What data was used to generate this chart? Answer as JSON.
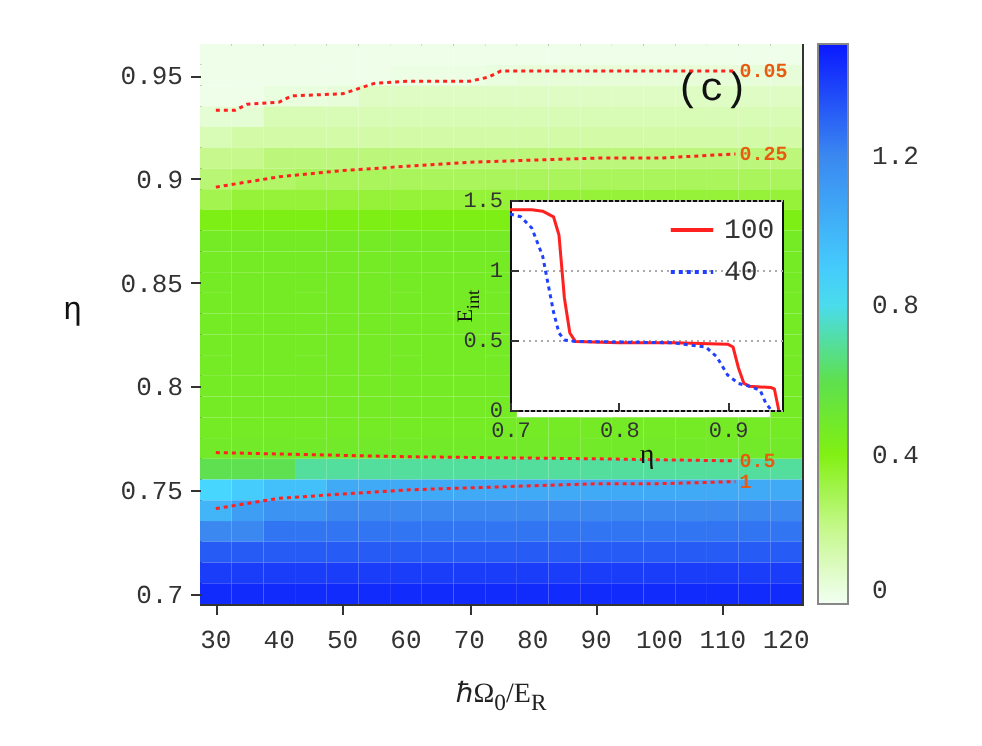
{
  "chart_data": [
    {
      "type": "heatmap",
      "annotations": [
        "(c)"
      ],
      "categories": [
        null,
        null,
        null,
        null,
        null,
        null,
        null,
        null,
        null,
        null,
        null,
        null,
        null,
        null,
        null,
        null,
        null,
        null,
        null
      ],
      "y_categories": [
        null,
        null,
        null,
        null,
        null,
        null,
        null,
        null,
        null,
        null,
        null,
        null,
        null,
        null,
        null,
        null,
        null,
        null,
        null,
        null,
        null,
        null,
        null,
        null,
        null,
        null,
        null
      ],
      "cells": [
        [
          0.02,
          0.02,
          0.02,
          0.02,
          0.02,
          0.02,
          0.02,
          0.02,
          0.02,
          0.02,
          0.02,
          0.02,
          0.02,
          0.02,
          0.02,
          0.02,
          0.02,
          0.02,
          0.02
        ],
        [
          0.02,
          0.02,
          0.02,
          0.02,
          0.02,
          0.02,
          0.03,
          0.03,
          0.03,
          0.04,
          0.05,
          0.05,
          0.05,
          0.05,
          0.05,
          0.05,
          0.05,
          0.05,
          0.05
        ],
        [
          0.02,
          0.02,
          0.04,
          0.04,
          0.05,
          0.09,
          0.09,
          0.09,
          0.09,
          0.09,
          0.09,
          0.09,
          0.09,
          0.09,
          0.09,
          0.09,
          0.09,
          0.09,
          0.09
        ],
        [
          0.06,
          0.06,
          0.12,
          0.12,
          0.12,
          0.12,
          0.12,
          0.12,
          0.12,
          0.12,
          0.12,
          0.12,
          0.12,
          0.12,
          0.12,
          0.12,
          0.12,
          0.12,
          0.12
        ],
        [
          0.12,
          0.15,
          0.15,
          0.15,
          0.15,
          0.15,
          0.15,
          0.15,
          0.15,
          0.15,
          0.15,
          0.15,
          0.15,
          0.15,
          0.15,
          0.15,
          0.15,
          0.15,
          0.15
        ],
        [
          0.2,
          0.2,
          0.23,
          0.23,
          0.23,
          0.23,
          0.23,
          0.23,
          0.23,
          0.23,
          0.23,
          0.23,
          0.23,
          0.23,
          0.23,
          0.23,
          0.23,
          0.23,
          0.23
        ],
        [
          0.24,
          0.26,
          0.26,
          0.28,
          0.28,
          0.28,
          0.28,
          0.28,
          0.28,
          0.28,
          0.28,
          0.28,
          0.28,
          0.28,
          0.28,
          0.28,
          0.28,
          0.28,
          0.28
        ],
        [
          0.3,
          0.34,
          0.34,
          0.34,
          0.34,
          0.34,
          0.34,
          0.34,
          0.34,
          0.34,
          0.34,
          0.34,
          0.34,
          0.34,
          0.34,
          0.34,
          0.34,
          0.34,
          0.34
        ],
        [
          0.42,
          0.42,
          0.42,
          0.42,
          0.42,
          0.42,
          0.42,
          0.42,
          0.42,
          0.42,
          null,
          null,
          null,
          null,
          null,
          null,
          null,
          null,
          0.42
        ],
        [
          0.47,
          0.47,
          0.47,
          0.47,
          0.47,
          0.47,
          0.47,
          0.47,
          0.47,
          0.47,
          null,
          null,
          null,
          null,
          null,
          null,
          null,
          null,
          0.47
        ],
        [
          0.47,
          0.47,
          0.47,
          0.47,
          0.47,
          0.47,
          0.47,
          0.47,
          0.47,
          0.47,
          null,
          null,
          null,
          null,
          null,
          null,
          null,
          null,
          0.47
        ],
        [
          0.47,
          0.47,
          0.47,
          0.47,
          0.47,
          0.47,
          0.47,
          0.47,
          0.47,
          0.47,
          null,
          null,
          null,
          null,
          null,
          null,
          null,
          null,
          0.47
        ],
        [
          0.47,
          0.47,
          0.47,
          0.47,
          0.47,
          0.47,
          0.47,
          0.47,
          0.47,
          0.47,
          null,
          null,
          null,
          null,
          null,
          null,
          null,
          null,
          0.47
        ],
        [
          0.47,
          0.47,
          0.47,
          0.47,
          0.47,
          0.47,
          0.47,
          0.47,
          0.47,
          0.47,
          null,
          null,
          null,
          null,
          null,
          null,
          null,
          null,
          0.47
        ],
        [
          0.47,
          0.47,
          0.47,
          0.47,
          0.47,
          0.47,
          0.47,
          0.47,
          0.47,
          0.47,
          null,
          null,
          null,
          null,
          null,
          null,
          null,
          null,
          0.47
        ],
        [
          0.47,
          0.47,
          0.47,
          0.47,
          0.47,
          0.47,
          0.47,
          0.47,
          0.47,
          0.47,
          null,
          null,
          null,
          null,
          null,
          null,
          null,
          null,
          0.47
        ],
        [
          0.47,
          0.47,
          0.47,
          0.47,
          0.47,
          0.47,
          0.47,
          0.47,
          0.47,
          0.47,
          null,
          null,
          null,
          null,
          null,
          null,
          null,
          null,
          0.47
        ],
        [
          0.47,
          0.47,
          0.47,
          0.47,
          0.47,
          0.47,
          0.47,
          0.47,
          0.47,
          0.47,
          null,
          null,
          null,
          null,
          null,
          null,
          null,
          null,
          0.47
        ],
        [
          0.47,
          0.47,
          0.47,
          0.47,
          0.47,
          0.47,
          0.47,
          0.47,
          0.47,
          0.47,
          0.47,
          0.47,
          0.47,
          0.47,
          0.47,
          0.47,
          0.47,
          0.47,
          0.47
        ],
        [
          0.48,
          0.48,
          0.48,
          0.48,
          0.48,
          0.48,
          0.48,
          0.48,
          0.48,
          0.48,
          0.48,
          0.48,
          0.48,
          0.48,
          0.48,
          0.48,
          0.48,
          0.48,
          0.48
        ],
        [
          0.6,
          0.6,
          0.6,
          0.7,
          0.7,
          0.7,
          0.7,
          0.7,
          0.7,
          0.7,
          0.7,
          0.7,
          0.7,
          0.7,
          0.7,
          0.7,
          0.7,
          0.7,
          0.7
        ],
        [
          0.85,
          0.9,
          0.95,
          0.95,
          1.05,
          1.05,
          1.05,
          1.05,
          1.05,
          1.05,
          1.05,
          1.05,
          1.05,
          1.05,
          1.05,
          1.05,
          1.05,
          1.05,
          1.05
        ],
        [
          1,
          1.1,
          1.15,
          1.15,
          1.2,
          1.2,
          1.2,
          1.2,
          1.2,
          1.2,
          1.2,
          1.2,
          1.2,
          1.2,
          1.2,
          1.2,
          1.2,
          1.2,
          1.2
        ],
        [
          1.2,
          1.2,
          1.25,
          1.25,
          1.25,
          1.25,
          1.25,
          1.25,
          1.25,
          1.25,
          1.25,
          1.25,
          1.25,
          1.25,
          1.25,
          1.25,
          1.25,
          1.25,
          1.25
        ],
        [
          1.32,
          1.32,
          1.32,
          1.32,
          1.32,
          1.32,
          1.32,
          1.32,
          1.32,
          1.32,
          1.32,
          1.32,
          1.32,
          1.32,
          1.32,
          1.32,
          1.32,
          1.32,
          1.32
        ],
        [
          1.4,
          1.4,
          1.4,
          1.4,
          1.4,
          1.4,
          1.4,
          1.4,
          1.4,
          1.4,
          1.4,
          1.4,
          1.4,
          1.4,
          1.4,
          1.4,
          1.4,
          1.4,
          1.4
        ],
        [
          1.45,
          1.45,
          1.45,
          1.45,
          1.45,
          1.45,
          1.45,
          1.45,
          1.45,
          1.45,
          1.45,
          1.45,
          1.45,
          1.45,
          1.45,
          1.45,
          1.45,
          1.45,
          1.45
        ]
      ],
      "clim": [
        0,
        1.5
      ],
      "cticks": [
        0,
        0.4,
        0.8,
        1.2
      ]
    },
    {
      "type": "line",
      "xlabel": "ℏΩ$_{0}$/E$_{R}$",
      "ylabel": "η",
      "xlim": [
        27.5,
        122.5
      ],
      "ylim": [
        0.695,
        0.965
      ],
      "xticks": [
        30,
        40,
        50,
        60,
        70,
        80,
        90,
        100,
        110,
        120
      ],
      "yticks": [
        0.7,
        0.75,
        0.8,
        0.85,
        0.9,
        0.95
      ],
      "line_style": "dotted",
      "series": [
        {
          "name": "0.05",
          "color": "#ff2020",
          "x": [
            30,
            33,
            35,
            40,
            42,
            50,
            55,
            60,
            70,
            73,
            75,
            80,
            90,
            100,
            112
          ],
          "values": [
            0.933,
            0.933,
            0.936,
            0.937,
            0.94,
            0.941,
            0.946,
            0.947,
            0.947,
            0.949,
            0.952,
            0.952,
            0.952,
            0.952,
            0.952
          ]
        },
        {
          "name": "0.25",
          "color": "#ff2020",
          "x": [
            30,
            40,
            50,
            60,
            70,
            80,
            90,
            100,
            112
          ],
          "values": [
            0.896,
            0.901,
            0.904,
            0.906,
            0.908,
            0.909,
            0.91,
            0.91,
            0.912
          ]
        },
        {
          "name": "0.5",
          "color": "#ff2020",
          "x": [
            30,
            60,
            90,
            112
          ],
          "values": [
            0.768,
            0.766,
            0.765,
            0.764
          ]
        },
        {
          "name": "1",
          "color": "#ff2020",
          "x": [
            30,
            40,
            50,
            60,
            70,
            80,
            90,
            100,
            112
          ],
          "values": [
            0.741,
            0.746,
            0.748,
            0.75,
            0.751,
            0.752,
            0.753,
            0.753,
            0.754
          ]
        }
      ]
    },
    {
      "type": "line",
      "xlabel": "η",
      "ylabel": "E$_{int}$",
      "xlim": [
        0.7,
        0.95
      ],
      "ylim": [
        0,
        1.5
      ],
      "xticks": [
        0.7,
        0.8,
        0.9
      ],
      "yticks": [
        0,
        0.5,
        1,
        1.5
      ],
      "grid": "y",
      "legend": "top right",
      "series": [
        {
          "name": "100",
          "color": "#ff2020",
          "line_style": "solid",
          "x": [
            0.7,
            0.72,
            0.73,
            0.74,
            0.745,
            0.75,
            0.755,
            0.76,
            0.8,
            0.85,
            0.9,
            0.905,
            0.91,
            0.915,
            0.92,
            0.94,
            0.943,
            0.947
          ],
          "values": [
            1.43,
            1.43,
            1.42,
            1.38,
            1.25,
            0.8,
            0.55,
            0.49,
            0.48,
            0.48,
            0.47,
            0.45,
            0.3,
            0.19,
            0.17,
            0.16,
            0.15,
            0
          ]
        },
        {
          "name": "40",
          "color": "#2040ff",
          "line_style": "dotted",
          "x": [
            0.7,
            0.71,
            0.72,
            0.73,
            0.735,
            0.74,
            0.745,
            0.75,
            0.76,
            0.85,
            0.88,
            0.89,
            0.9,
            0.91,
            0.92,
            0.93,
            0.935,
            0.94
          ],
          "values": [
            1.4,
            1.38,
            1.3,
            1.1,
            0.9,
            0.7,
            0.55,
            0.5,
            0.49,
            0.48,
            0.45,
            0.38,
            0.25,
            0.19,
            0.17,
            0.14,
            0.05,
            0
          ]
        }
      ]
    }
  ]
}
